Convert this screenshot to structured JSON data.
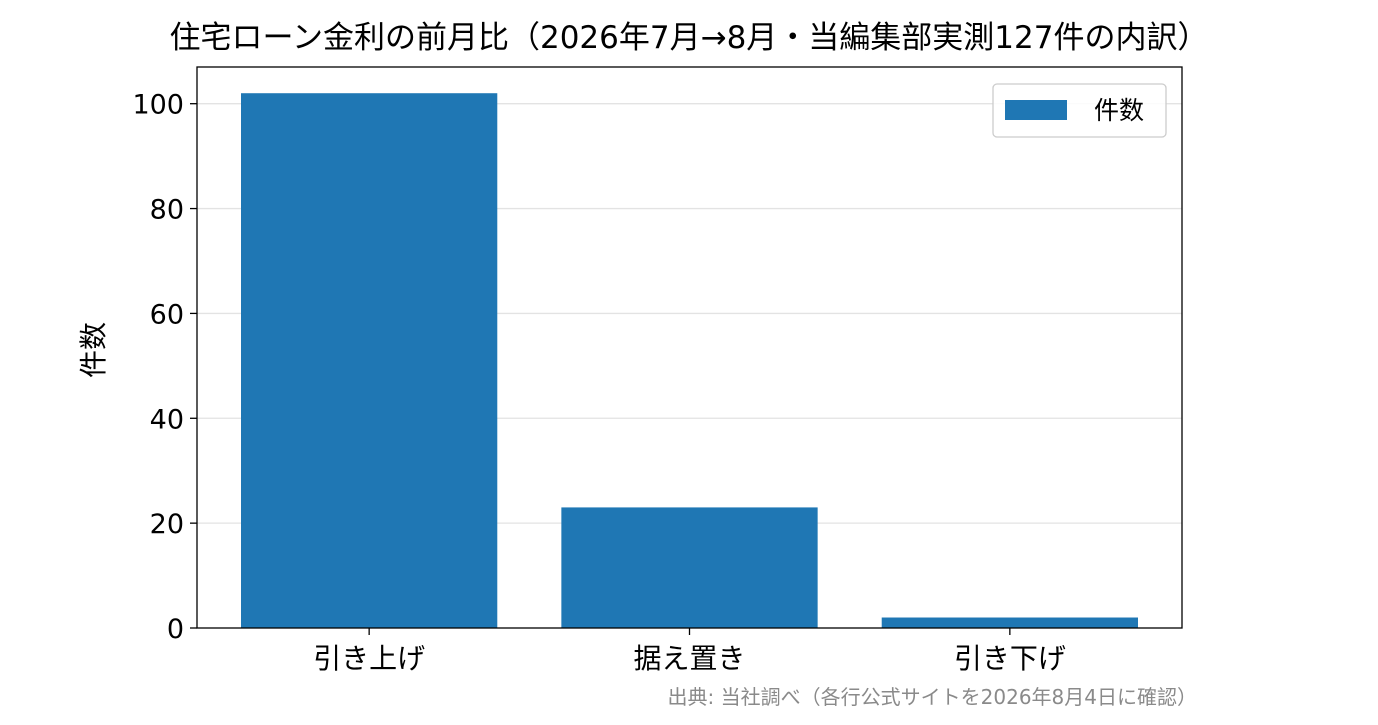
{
  "chart_data": {
    "type": "bar",
    "title": "住宅ローン金利の前月比（2026年7月→8月・当編集部実測127件の内訳）",
    "categories": [
      "引き上げ",
      "据え置き",
      "引き下げ"
    ],
    "series": [
      {
        "name": "件数",
        "values": [
          102,
          23,
          2
        ]
      }
    ],
    "xlabel": "",
    "ylabel": "件数",
    "ylim": [
      0,
      107
    ],
    "yticks": [
      0,
      20,
      40,
      60,
      80,
      100
    ],
    "grid": "horizontal",
    "legend": "top-right",
    "bar_color": "#1f77b4",
    "source_note": "出典: 当社調べ（各行公式サイトを2026年8月4日に確認）"
  }
}
